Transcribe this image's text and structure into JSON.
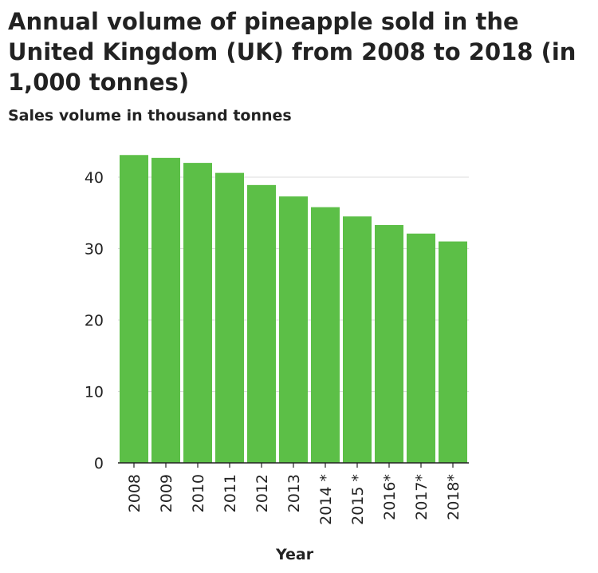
{
  "chart_data": {
    "type": "bar",
    "title": "Annual volume of pineapple sold in the United Kingdom (UK) from 2008 to 2018 (in 1,000 tonnes)",
    "ylabel": "Sales volume in thousand tonnes",
    "xlabel": "Year",
    "categories": [
      "2008",
      "2009",
      "2010",
      "2011",
      "2012",
      "2013",
      "2014 *",
      "2015 *",
      "2016*",
      "2017*",
      "2018*"
    ],
    "values": [
      43.1,
      42.7,
      42.0,
      40.6,
      38.9,
      37.3,
      35.8,
      34.5,
      33.3,
      32.1,
      31.0
    ],
    "ylim": [
      0,
      45
    ],
    "yticks": [
      0,
      10,
      20,
      30,
      40
    ],
    "grid": true,
    "bar_color": "#5cbf47"
  }
}
